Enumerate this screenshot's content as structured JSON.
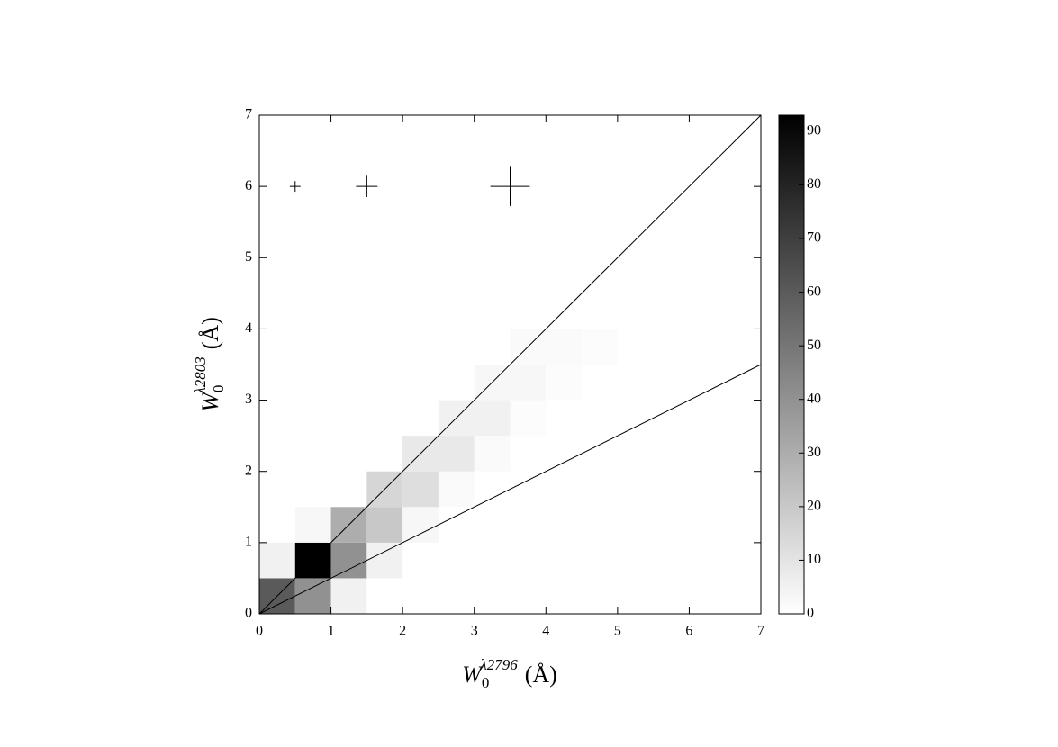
{
  "chart_data": {
    "type": "heatmap",
    "xlabel": {
      "base": "W",
      "sub": "0",
      "sup": "λ2796",
      "unit": "(Å)"
    },
    "ylabel": {
      "base": "W",
      "sub": "0",
      "sup": "λ2803",
      "unit": "(Å)"
    },
    "xlim": [
      0,
      7
    ],
    "ylim": [
      0,
      7
    ],
    "xticks": [
      0,
      1,
      2,
      3,
      4,
      5,
      6,
      7
    ],
    "yticks": [
      0,
      1,
      2,
      3,
      4,
      5,
      6,
      7
    ],
    "xbins": [
      0,
      0.5,
      1,
      1.5,
      2,
      2.5,
      3,
      3.5,
      4,
      4.5,
      5
    ],
    "ybins": [
      0,
      0.5,
      1,
      1.5,
      2,
      2.5,
      3,
      3.5,
      4
    ],
    "values": [
      [
        60,
        40,
        5,
        0,
        0,
        0,
        0,
        0,
        0,
        0
      ],
      [
        5,
        93,
        40,
        5,
        0,
        0,
        0,
        0,
        0,
        0
      ],
      [
        0,
        3,
        30,
        20,
        3,
        0,
        0,
        0,
        0,
        0
      ],
      [
        0,
        0,
        0,
        15,
        12,
        2,
        0,
        0,
        0,
        0
      ],
      [
        0,
        0,
        0,
        0,
        8,
        8,
        2,
        0,
        0,
        0
      ],
      [
        0,
        0,
        0,
        0,
        0,
        5,
        5,
        1,
        0,
        0
      ],
      [
        0,
        0,
        0,
        0,
        0,
        0,
        3,
        3,
        1,
        0
      ],
      [
        0,
        0,
        0,
        0,
        0,
        0,
        0,
        2,
        2,
        1
      ]
    ],
    "zlim": [
      0,
      93
    ],
    "zticks": [
      0,
      10,
      20,
      30,
      40,
      50,
      60,
      70,
      80,
      90
    ],
    "reference_lines": {
      "slopes": [
        1,
        0.5
      ]
    },
    "error_bars": {
      "x": [
        0.5,
        1.5,
        3.5
      ],
      "y": [
        6,
        6,
        6
      ],
      "errors": [
        0.075,
        0.15,
        0.275
      ]
    }
  }
}
